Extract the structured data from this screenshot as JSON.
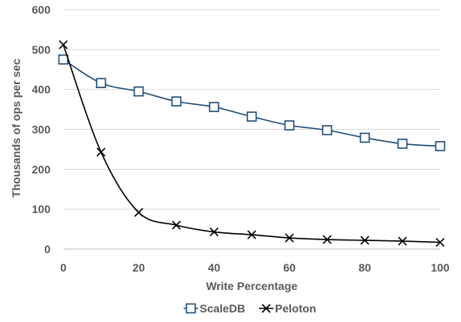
{
  "chart_data": {
    "type": "line",
    "xlabel": "Write Percentage",
    "ylabel": "Thousands of ops per sec",
    "xlim": [
      0,
      100
    ],
    "ylim": [
      0,
      600
    ],
    "x_ticks": [
      0,
      20,
      40,
      60,
      80,
      100
    ],
    "y_ticks": [
      0,
      100,
      200,
      300,
      400,
      500,
      600
    ],
    "grid": "horizontal",
    "legend_position": "bottom",
    "x": [
      0,
      10,
      20,
      30,
      40,
      50,
      60,
      70,
      80,
      90,
      100
    ],
    "series": [
      {
        "name": "ScaleDB",
        "marker": "square",
        "color": "#1f4e79",
        "values": [
          475,
          416,
          395,
          370,
          356,
          332,
          310,
          298,
          279,
          264,
          258
        ]
      },
      {
        "name": "Peloton",
        "marker": "x",
        "color": "#000000",
        "values": [
          512,
          243,
          92,
          60,
          43,
          36,
          28,
          24,
          22,
          20,
          17
        ]
      }
    ]
  }
}
